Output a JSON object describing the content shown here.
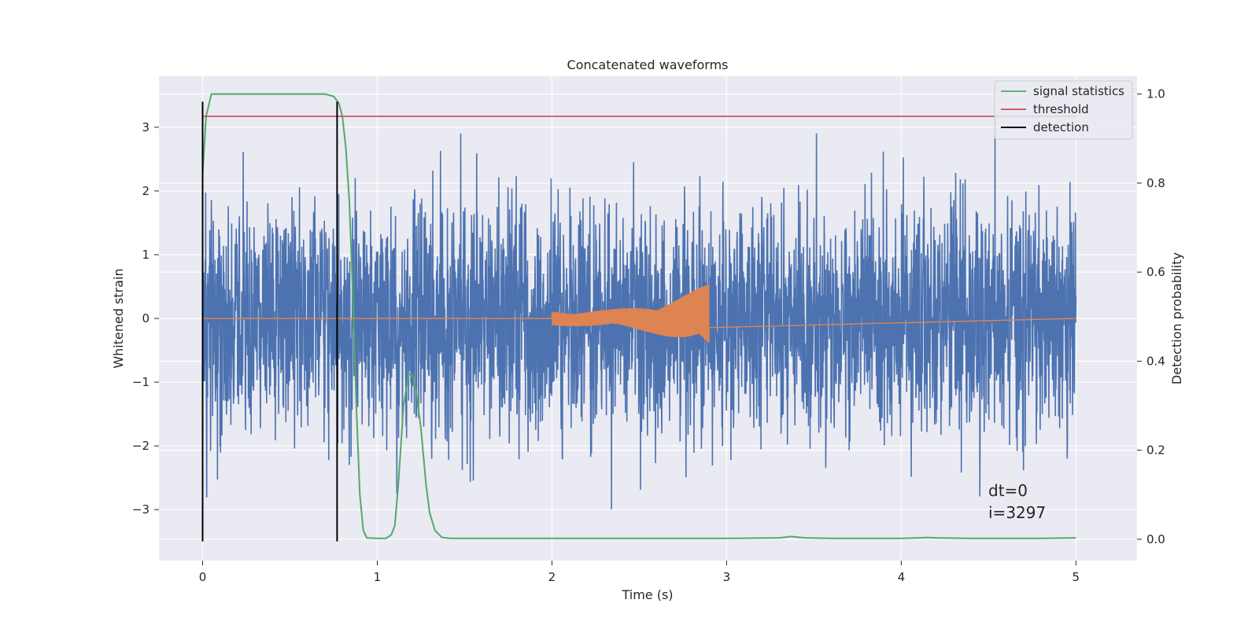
{
  "chart_data": {
    "type": "line",
    "title": "Concatenated waveforms",
    "xlabel": "Time (s)",
    "ylabel": "Whitened strain",
    "y2label": "Detection probability",
    "xlim": [
      -0.25,
      5.35
    ],
    "ylim": [
      -3.8,
      3.8
    ],
    "y2lim": [
      -0.048,
      1.04
    ],
    "xticks": [
      0,
      1,
      2,
      3,
      4,
      5
    ],
    "yticks": [
      -3,
      -2,
      -1,
      0,
      1,
      2,
      3
    ],
    "y2ticks": [
      0.0,
      0.2,
      0.4,
      0.6,
      0.8,
      1.0
    ],
    "xtick_labels": [
      "0",
      "1",
      "2",
      "3",
      "4",
      "5"
    ],
    "ytick_labels": [
      "−3",
      "−2",
      "−1",
      "0",
      "1",
      "2",
      "3"
    ],
    "y2tick_labels": [
      "0.0",
      "0.2",
      "0.4",
      "0.6",
      "0.8",
      "1.0"
    ],
    "grid": true,
    "background": "#eaeaf2",
    "legend_position": "top-right",
    "colors": {
      "noise": "#4c72b0",
      "template": "#dd8452",
      "signal_statistics": "#55a868",
      "threshold": "#c44e52",
      "detection": "#000000"
    },
    "noise": {
      "x_range": [
        0,
        5
      ],
      "amplitude_typical": 1.3,
      "amplitude_peak": 3.4
    },
    "template": {
      "x_range": [
        2.0,
        2.9
      ],
      "amplitude_start": 0.12,
      "amplitude_end": 0.55,
      "baseline": 0
    },
    "series": [
      {
        "name": "signal statistics",
        "axis": "right",
        "x": [
          0,
          0.02,
          0.05,
          0.1,
          0.3,
          0.5,
          0.7,
          0.75,
          0.78,
          0.8,
          0.82,
          0.84,
          0.86,
          0.88,
          0.9,
          0.92,
          0.94,
          1.0,
          1.05,
          1.08,
          1.1,
          1.12,
          1.15,
          1.18,
          1.2,
          1.22,
          1.25,
          1.28,
          1.3,
          1.33,
          1.37,
          1.42,
          1.5,
          2.0,
          2.5,
          3.0,
          3.3,
          3.37,
          3.45,
          3.6,
          4.0,
          4.1,
          4.15,
          4.2,
          4.4,
          4.8,
          5.0
        ],
        "y": [
          0.82,
          0.95,
          1.0,
          1.0,
          1.0,
          1.0,
          1.0,
          0.995,
          0.98,
          0.95,
          0.88,
          0.76,
          0.55,
          0.3,
          0.1,
          0.02,
          0.003,
          0.002,
          0.002,
          0.01,
          0.03,
          0.12,
          0.3,
          0.37,
          0.37,
          0.34,
          0.25,
          0.12,
          0.06,
          0.02,
          0.004,
          0.002,
          0.002,
          0.002,
          0.002,
          0.002,
          0.003,
          0.006,
          0.003,
          0.002,
          0.002,
          0.003,
          0.004,
          0.003,
          0.002,
          0.002,
          0.003
        ]
      },
      {
        "name": "threshold",
        "axis": "right",
        "x": [
          0,
          5
        ],
        "y": [
          0.95,
          0.95
        ]
      },
      {
        "name": "detection",
        "axis": "left",
        "x_positions": [
          0,
          0.77
        ],
        "y_range": [
          -3.5,
          3.4
        ]
      }
    ],
    "legend": [
      "signal statistics",
      "threshold",
      "detection"
    ],
    "annotations": [
      "dt=0",
      "i=3297"
    ]
  }
}
